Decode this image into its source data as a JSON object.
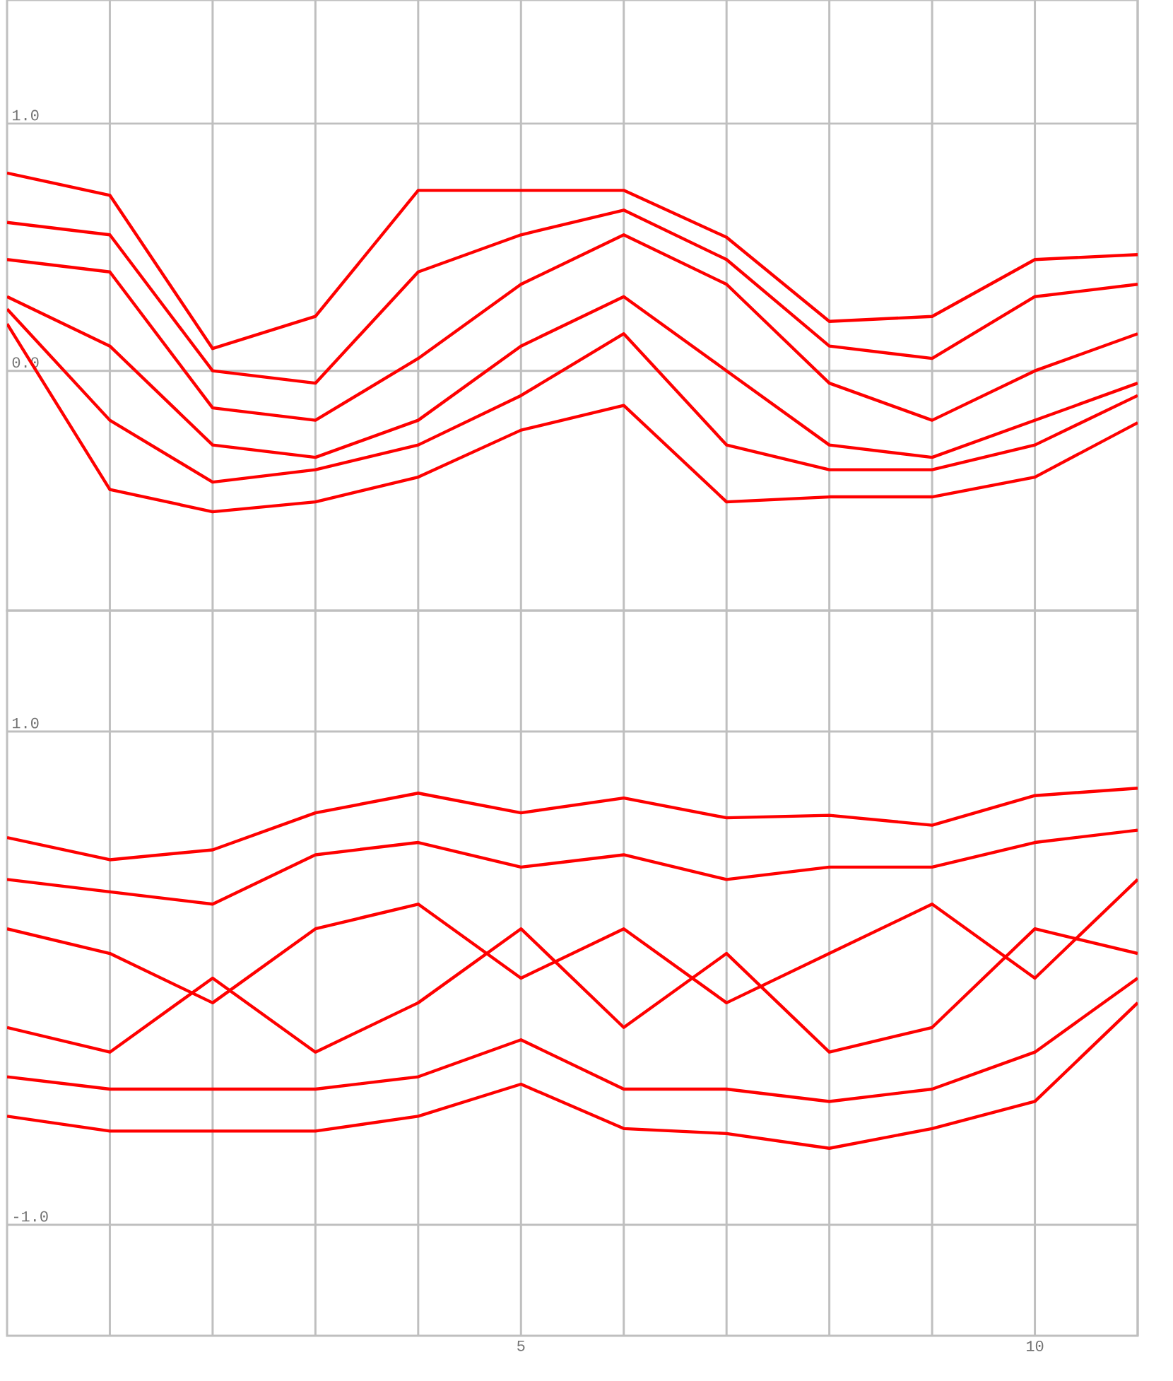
{
  "chart_data": [
    {
      "type": "line",
      "x": [
        0,
        1,
        2,
        3,
        4,
        5,
        6,
        7,
        8,
        9,
        10,
        11
      ],
      "xlim": [
        0,
        11
      ],
      "ylim": [
        -0.97,
        1.5
      ],
      "xticks": [
        {
          "value": 1,
          "label": null
        },
        {
          "value": 2,
          "label": null
        },
        {
          "value": 3,
          "label": null
        },
        {
          "value": 4,
          "label": null
        },
        {
          "value": 5,
          "label": null
        },
        {
          "value": 6,
          "label": null
        },
        {
          "value": 7,
          "label": null
        },
        {
          "value": 8,
          "label": null
        },
        {
          "value": 9,
          "label": null
        },
        {
          "value": 10,
          "label": null
        },
        {
          "value": 11,
          "label": null
        }
      ],
      "yticks": [
        {
          "value": 0,
          "label": "0.0"
        },
        {
          "value": 1,
          "label": "1.0"
        }
      ],
      "tick_labels": "y",
      "grid": true,
      "marker": "none",
      "series": [
        {
          "color": "#ff0000",
          "values": [
            0.8,
            0.71,
            0.09,
            0.22,
            0.73,
            0.73,
            0.73,
            0.54,
            0.2,
            0.22,
            0.45,
            0.47
          ]
        },
        {
          "color": "#ff0000",
          "values": [
            0.6,
            0.55,
            0.0,
            -0.05,
            0.4,
            0.55,
            0.65,
            0.45,
            0.1,
            0.05,
            0.3,
            0.35
          ]
        },
        {
          "color": "#ff0000",
          "values": [
            0.45,
            0.4,
            -0.15,
            -0.2,
            0.05,
            0.35,
            0.55,
            0.35,
            -0.05,
            -0.2,
            0.0,
            0.15
          ]
        },
        {
          "color": "#ff0000",
          "values": [
            0.3,
            0.1,
            -0.3,
            -0.35,
            -0.2,
            0.1,
            0.3,
            0.0,
            -0.3,
            -0.35,
            -0.2,
            -0.05
          ]
        },
        {
          "color": "#ff0000",
          "values": [
            0.25,
            -0.2,
            -0.45,
            -0.4,
            -0.3,
            -0.1,
            0.15,
            -0.3,
            -0.4,
            -0.4,
            -0.3,
            -0.1
          ]
        },
        {
          "color": "#ff0000",
          "values": [
            0.19,
            -0.48,
            -0.57,
            -0.53,
            -0.43,
            -0.24,
            -0.14,
            -0.53,
            -0.51,
            -0.51,
            -0.43,
            -0.21
          ]
        }
      ]
    },
    {
      "type": "line",
      "x": [
        0,
        1,
        2,
        3,
        4,
        5,
        6,
        7,
        8,
        9,
        10,
        11
      ],
      "xlim": [
        0,
        11
      ],
      "ylim": [
        -1.45,
        1.49
      ],
      "xticks": [
        {
          "value": 1,
          "label": null
        },
        {
          "value": 2,
          "label": null
        },
        {
          "value": 3,
          "label": null
        },
        {
          "value": 4,
          "label": null
        },
        {
          "value": 5,
          "label": "5"
        },
        {
          "value": 6,
          "label": null
        },
        {
          "value": 7,
          "label": null
        },
        {
          "value": 8,
          "label": null
        },
        {
          "value": 9,
          "label": null
        },
        {
          "value": 10,
          "label": "10"
        },
        {
          "value": 11,
          "label": null
        }
      ],
      "yticks": [
        {
          "value": -1,
          "label": "-1.0"
        },
        {
          "value": 1,
          "label": "1.0"
        }
      ],
      "grid": true,
      "marker": "none",
      "series": [
        {
          "color": "#ff0000",
          "values": [
            0.57,
            0.48,
            0.52,
            0.67,
            0.75,
            0.67,
            0.73,
            0.65,
            0.66,
            0.62,
            0.74,
            0.77
          ]
        },
        {
          "color": "#ff0000",
          "values": [
            0.4,
            0.35,
            0.3,
            0.5,
            0.55,
            0.45,
            0.5,
            0.4,
            0.45,
            0.45,
            0.55,
            0.6
          ]
        },
        {
          "color": "#ff0000",
          "values": [
            0.2,
            0.1,
            -0.1,
            0.2,
            0.3,
            0.0,
            0.2,
            -0.1,
            0.1,
            0.3,
            0.0,
            0.4
          ]
        },
        {
          "color": "#ff0000",
          "values": [
            -0.2,
            -0.3,
            0.0,
            -0.3,
            -0.1,
            0.2,
            -0.2,
            0.1,
            -0.3,
            -0.2,
            0.2,
            0.1
          ]
        },
        {
          "color": "#ff0000",
          "values": [
            -0.4,
            -0.45,
            -0.45,
            -0.45,
            -0.4,
            -0.25,
            -0.45,
            -0.45,
            -0.5,
            -0.45,
            -0.3,
            0.0
          ]
        },
        {
          "color": "#ff0000",
          "values": [
            -0.56,
            -0.62,
            -0.62,
            -0.62,
            -0.56,
            -0.43,
            -0.61,
            -0.63,
            -0.69,
            -0.61,
            -0.5,
            -0.1
          ]
        }
      ]
    }
  ]
}
